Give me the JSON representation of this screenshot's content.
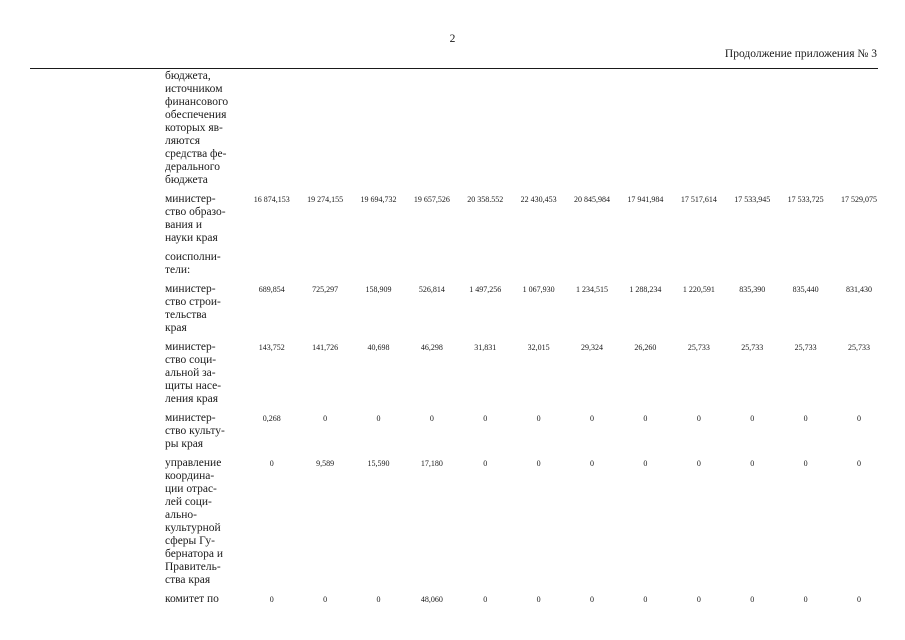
{
  "page": {
    "number": "2",
    "continuation": "Продолжение приложения № 3"
  },
  "table": {
    "column_count": 12,
    "rows": [
      {
        "label": "бюджета,\nисточником\nфинансового\nобеспечения\nкоторых яв-\nляются\nсредства фе-\nдерального\nбюджета",
        "values": []
      },
      {
        "label": "министер-\nство образо-\nвания и\nнауки края",
        "values": [
          "16 874,153",
          "19 274,155",
          "19 694,732",
          "19 657,526",
          "20 358.552",
          "22 430,453",
          "20 845,984",
          "17 941,984",
          "17 517,614",
          "17 533,945",
          "17 533,725",
          "17 529,075"
        ]
      },
      {
        "label": "соисполни-\nтели:",
        "values": []
      },
      {
        "label": "министер-\nство строи-\nтельства\nкрая",
        "values": [
          "689,854",
          "725,297",
          "158,909",
          "526,814",
          "1 497,256",
          "1 067,930",
          "1 234,515",
          "1 288,234",
          "1 220,591",
          "835,390",
          "835,440",
          "831,430"
        ]
      },
      {
        "label": "министер-\nство соци-\nальной за-\nщиты насе-\nления края",
        "values": [
          "143,752",
          "141,726",
          "40,698",
          "46,298",
          "31,831",
          "32,015",
          "29,324",
          "26,260",
          "25,733",
          "25,733",
          "25,733",
          "25,733"
        ]
      },
      {
        "label": "министер-\nство культу-\nры края",
        "values": [
          "0,268",
          "0",
          "0",
          "0",
          "0",
          "0",
          "0",
          "0",
          "0",
          "0",
          "0",
          "0"
        ]
      },
      {
        "label": "управление\nкоордина-\nции отрас-\nлей соци-\nально-\nкультурной\nсферы Гу-\nбернатора и\nПравитель-\nства края",
        "values": [
          "0",
          "9,589",
          "15,590",
          "17,180",
          "0",
          "0",
          "0",
          "0",
          "0",
          "0",
          "0",
          "0"
        ]
      },
      {
        "label": "комитет по",
        "values": [
          "0",
          "0",
          "0",
          "48,060",
          "0",
          "0",
          "0",
          "0",
          "0",
          "0",
          "0",
          "0"
        ]
      }
    ]
  }
}
